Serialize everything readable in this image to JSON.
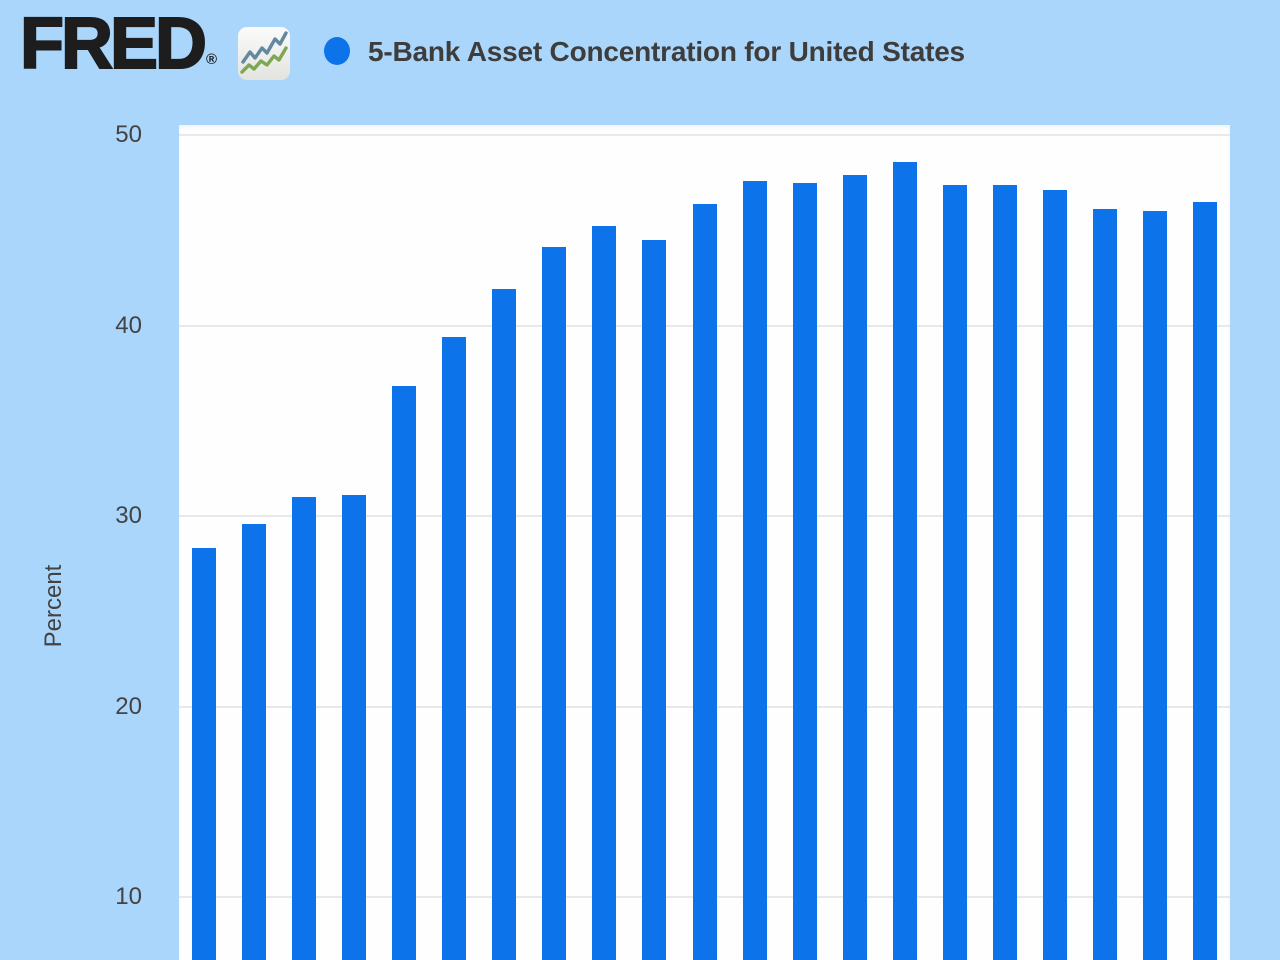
{
  "header": {
    "logo_text": "FRED",
    "registered_mark": "®",
    "series_title": "5-Bank Asset Concentration for United States"
  },
  "chart_data": {
    "type": "bar",
    "title": "5-Bank Asset Concentration for United States",
    "xlabel": "",
    "ylabel": "Percent",
    "y_ticks": [
      50,
      40,
      30,
      20,
      10
    ],
    "ylim_visible": [
      6.7,
      50.7
    ],
    "grid": "horizontal",
    "legend_position": "top",
    "x_tick_labels_visible": false,
    "values": [
      28.3,
      29.6,
      31.0,
      31.1,
      36.8,
      39.4,
      41.9,
      44.1,
      45.2,
      44.5,
      46.4,
      47.6,
      47.5,
      47.9,
      48.6,
      47.4,
      47.4,
      47.1,
      46.1,
      46.0,
      46.5
    ]
  },
  "colors": {
    "page_bg": "#aad6fb",
    "plot_bg": "#fefefe",
    "bar": "#0c73ea",
    "legend_dot": "#0c73ea",
    "gridline": "#e9e9e9",
    "tick_text": "#434343",
    "title_text": "#3d3d3d",
    "logo_text": "#1d1d1d",
    "icon_line_blue": "#64889f",
    "icon_line_green": "#7fa653"
  }
}
